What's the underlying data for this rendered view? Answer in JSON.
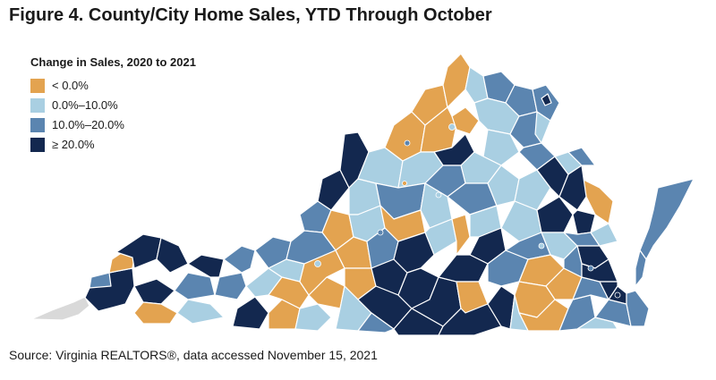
{
  "figure": {
    "title": "Figure 4. County/City Home Sales, YTD Through October"
  },
  "legend": {
    "title": "Change in Sales, 2020 to 2021",
    "items": [
      {
        "label": "< 0.0%",
        "color": "#e3a350"
      },
      {
        "label": "0.0%–10.0%",
        "color": "#a9cfe2"
      },
      {
        "label": "10.0%–20.0%",
        "color": "#5b85b0"
      },
      {
        "label": "≥ 20.0%",
        "color": "#13284f"
      }
    ]
  },
  "colors": {
    "no_data": "#d9d9d9",
    "border": "#ffffff"
  },
  "source": "Source: Virginia REALTORS®, data accessed November 15, 2021"
}
